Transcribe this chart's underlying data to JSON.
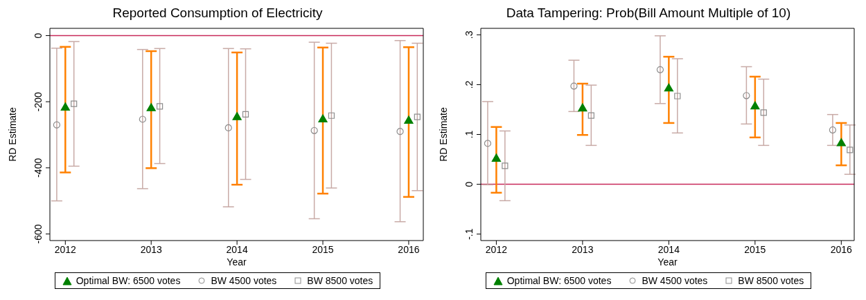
{
  "chart_data": [
    {
      "type": "scatter",
      "title": "Reported Consumption of Electricity",
      "xlabel": "Year",
      "ylabel": "RD Estimate",
      "xlim": [
        2011.82,
        2016.17
      ],
      "xticks": [
        2012,
        2013,
        2014,
        2015,
        2016
      ],
      "ylim": [
        -620,
        22
      ],
      "yticks": [
        0,
        -200,
        -400,
        -600
      ],
      "grid": false,
      "legend": "bottom",
      "ref_lines": [
        {
          "axis": "y",
          "value": 0,
          "color": "#c8285a"
        }
      ],
      "series": [
        {
          "name": "Optimal BW: 6500 votes",
          "color": "#008000",
          "marker": "triangle",
          "x": [
            2012,
            2013,
            2014,
            2015,
            2016
          ],
          "values": [
            -218,
            -220,
            -247,
            -254,
            -258
          ],
          "errors": [
            [
              -414,
              -34
            ],
            [
              -401,
              -47
            ],
            [
              -451,
              -51
            ],
            [
              -478,
              -36
            ],
            [
              -488,
              -35
            ]
          ]
        },
        {
          "name": "BW 4500 votes",
          "color": "#8c8c8c",
          "marker": "circle",
          "x": [
            2011.9,
            2012.9,
            2013.9,
            2014.9,
            2015.9
          ],
          "values": [
            -270,
            -253,
            -279,
            -287,
            -290
          ],
          "errors": [
            [
              -500,
              -38
            ],
            [
              -463,
              -42
            ],
            [
              -518,
              -39
            ],
            [
              -554,
              -20
            ],
            [
              -563,
              -15
            ]
          ]
        },
        {
          "name": "BW 8500 votes",
          "color": "#8c8c8c",
          "marker": "square",
          "x": [
            2012.1,
            2013.1,
            2014.1,
            2015.1,
            2016.1
          ],
          "values": [
            -206,
            -214,
            -238,
            -242,
            -246
          ],
          "errors": [
            [
              -395,
              -18
            ],
            [
              -387,
              -39
            ],
            [
              -435,
              -40
            ],
            [
              -461,
              -23
            ],
            [
              -469,
              -23
            ]
          ]
        }
      ]
    },
    {
      "type": "scatter",
      "title": "Data Tampering: Prob(Bill Amount Multiple of 10)",
      "xlabel": "Year",
      "ylabel": "RD Estimate",
      "xlim": [
        2011.82,
        2016.15
      ],
      "xticks": [
        2012,
        2013,
        2014,
        2015,
        2016
      ],
      "ylim": [
        -0.113,
        0.313
      ],
      "yticks": [
        {
          "value": 0.3,
          "label": ".3"
        },
        {
          "value": 0.2,
          "label": ".2"
        },
        {
          "value": 0.1,
          "label": ".1"
        },
        0,
        {
          "value": -0.1,
          "label": "-.1"
        }
      ],
      "grid": false,
      "legend": "bottom",
      "ref_lines": [
        {
          "axis": "y",
          "value": 0,
          "color": "#c8285a"
        }
      ],
      "series": [
        {
          "name": "Optimal BW: 6500 votes",
          "color": "#008000",
          "marker": "triangle",
          "x": [
            2012,
            2013,
            2014,
            2015,
            2016
          ],
          "values": [
            0.051,
            0.152,
            0.192,
            0.156,
            0.082
          ],
          "errors": [
            [
              -0.017,
              0.115
            ],
            [
              0.099,
              0.202
            ],
            [
              0.123,
              0.256
            ],
            [
              0.094,
              0.216
            ],
            [
              0.038,
              0.123
            ]
          ]
        },
        {
          "name": "BW 4500 votes",
          "color": "#8c8c8c",
          "marker": "circle",
          "x": [
            2011.9,
            2012.9,
            2013.9,
            2014.9,
            2015.9
          ],
          "values": [
            0.082,
            0.197,
            0.23,
            0.178,
            0.109
          ],
          "errors": [
            [
              -0.001,
              0.166
            ],
            [
              0.146,
              0.249
            ],
            [
              0.162,
              0.298
            ],
            [
              0.121,
              0.236
            ],
            [
              0.078,
              0.14
            ]
          ]
        },
        {
          "name": "BW 8500 votes",
          "color": "#8c8c8c",
          "marker": "square",
          "x": [
            2012.1,
            2013.1,
            2014.1,
            2015.1,
            2016.1
          ],
          "values": [
            0.037,
            0.138,
            0.177,
            0.144,
            0.069
          ],
          "errors": [
            [
              -0.033,
              0.107
            ],
            [
              0.078,
              0.199
            ],
            [
              0.103,
              0.252
            ],
            [
              0.078,
              0.211
            ],
            [
              0.02,
              0.119
            ]
          ]
        }
      ]
    }
  ]
}
